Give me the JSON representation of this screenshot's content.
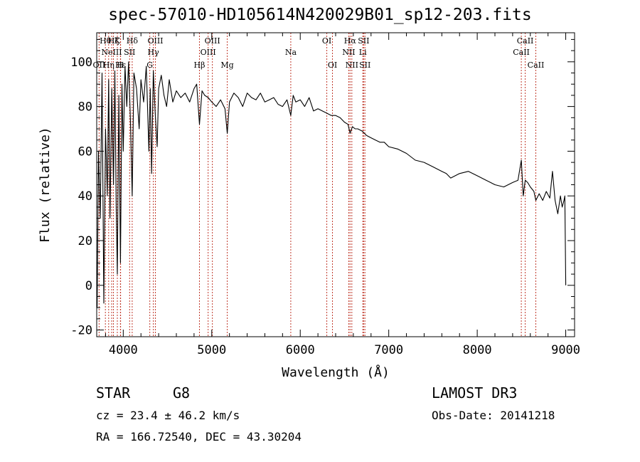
{
  "chart_data": {
    "type": "line",
    "title": "spec-57010-HD105614N420029B01_sp12-203.fits",
    "xlabel": "Wavelength (Å)",
    "ylabel": "Flux (relative)",
    "xlim": [
      3700,
      9100
    ],
    "ylim": [
      -23,
      113
    ],
    "xticks": [
      4000,
      5000,
      6000,
      7000,
      8000,
      9000
    ],
    "yticks": [
      -20,
      0,
      20,
      40,
      60,
      80,
      100
    ],
    "series": [
      {
        "name": "spectrum",
        "x": [
          3705,
          3720,
          3740,
          3760,
          3780,
          3800,
          3820,
          3835,
          3850,
          3870,
          3890,
          3905,
          3920,
          3933,
          3950,
          3968,
          3985,
          4000,
          4020,
          4040,
          4060,
          4080,
          4101,
          4120,
          4150,
          4180,
          4200,
          4230,
          4260,
          4290,
          4305,
          4320,
          4340,
          4360,
          4383,
          4400,
          4430,
          4460,
          4490,
          4520,
          4560,
          4600,
          4650,
          4700,
          4750,
          4800,
          4830,
          4861,
          4890,
          4920,
          4960,
          5000,
          5050,
          5100,
          5150,
          5175,
          5200,
          5250,
          5300,
          5350,
          5400,
          5450,
          5500,
          5550,
          5600,
          5650,
          5700,
          5750,
          5800,
          5850,
          5893,
          5920,
          5950,
          6000,
          6050,
          6100,
          6150,
          6200,
          6250,
          6300,
          6350,
          6400,
          6450,
          6500,
          6540,
          6563,
          6590,
          6620,
          6650,
          6700,
          6750,
          6800,
          6850,
          6900,
          6950,
          7000,
          7100,
          7200,
          7300,
          7400,
          7500,
          7600,
          7650,
          7700,
          7800,
          7900,
          8000,
          8100,
          8200,
          8300,
          8400,
          8460,
          8498,
          8520,
          8542,
          8570,
          8600,
          8640,
          8662,
          8700,
          8740,
          8780,
          8820,
          8850,
          8880,
          8910,
          8940,
          8960,
          8980,
          8990,
          9000
        ],
        "y": [
          -10,
          60,
          30,
          95,
          -8,
          70,
          40,
          92,
          30,
          88,
          45,
          96,
          35,
          5,
          85,
          10,
          90,
          60,
          98,
          80,
          100,
          75,
          40,
          95,
          88,
          70,
          92,
          82,
          98,
          60,
          88,
          50,
          96,
          78,
          62,
          88,
          94,
          85,
          80,
          92,
          82,
          87,
          84,
          86,
          82,
          88,
          90,
          72,
          87,
          85,
          84,
          82,
          80,
          83,
          79,
          68,
          82,
          86,
          84,
          80,
          86,
          84,
          83,
          86,
          82,
          83,
          84,
          81,
          80,
          83,
          76,
          85,
          82,
          83,
          80,
          84,
          78,
          79,
          78,
          77,
          76,
          76,
          75,
          73,
          72,
          68,
          71,
          70,
          70,
          69,
          67,
          66,
          65,
          64,
          64,
          62,
          61,
          59,
          56,
          55,
          53,
          51,
          50,
          48,
          50,
          51,
          49,
          47,
          45,
          44,
          46,
          47,
          56,
          40,
          47,
          46,
          44,
          42,
          38,
          41,
          38,
          42,
          39,
          51,
          38,
          32,
          40,
          35,
          38,
          40,
          0
        ]
      }
    ],
    "lines": [
      {
        "x": 3727,
        "label": "OII",
        "row": 2
      },
      {
        "x": 3798,
        "label": "Hθ",
        "row": 0
      },
      {
        "x": 3835,
        "label": "Hη",
        "row": 2
      },
      {
        "x": 3869,
        "label": "NeIII",
        "row": 1
      },
      {
        "x": 3889,
        "label": "Hζ",
        "row": 0
      },
      {
        "x": 3933,
        "label": "K",
        "row": 0
      },
      {
        "x": 3968,
        "label": "H",
        "row": 2
      },
      {
        "x": 3970,
        "label": "Hε",
        "row": 2
      },
      {
        "x": 4072,
        "label": "SII",
        "row": 1
      },
      {
        "x": 4101,
        "label": "Hδ",
        "row": 0
      },
      {
        "x": 4300,
        "label": "G",
        "row": 2
      },
      {
        "x": 4340,
        "label": "Hγ",
        "row": 1
      },
      {
        "x": 4363,
        "label": "OIII",
        "row": 0
      },
      {
        "x": 4861,
        "label": "Hβ",
        "row": 2
      },
      {
        "x": 4959,
        "label": "OIII",
        "row": 1
      },
      {
        "x": 5007,
        "label": "OIII",
        "row": 0
      },
      {
        "x": 5175,
        "label": "Mg",
        "row": 2
      },
      {
        "x": 5893,
        "label": "Na",
        "row": 1
      },
      {
        "x": 6300,
        "label": "OI",
        "row": 0
      },
      {
        "x": 6364,
        "label": "OI",
        "row": 2
      },
      {
        "x": 6548,
        "label": "NII",
        "row": 1
      },
      {
        "x": 6563,
        "label": "Hα",
        "row": 0
      },
      {
        "x": 6583,
        "label": "NII",
        "row": 2
      },
      {
        "x": 6707,
        "label": "Li",
        "row": 1
      },
      {
        "x": 6716,
        "label": "SII",
        "row": 0
      },
      {
        "x": 6731,
        "label": "SII",
        "row": 2
      },
      {
        "x": 8498,
        "label": "CaII",
        "row": 1
      },
      {
        "x": 8542,
        "label": "CaII",
        "row": 0
      },
      {
        "x": 8662,
        "label": "CaII",
        "row": 2
      }
    ]
  },
  "info": {
    "star_label": "STAR",
    "spectral_type": "G8",
    "survey": "LAMOST DR3",
    "cz": "cz = 23.4 ± 46.2 km/s",
    "obs_date": "Obs-Date: 20141218",
    "coords": "RA = 166.72540, DEC =  43.30204"
  },
  "colors": {
    "line_marker": "#c0392b",
    "spectrum": "#000000",
    "axes": "#000000"
  }
}
